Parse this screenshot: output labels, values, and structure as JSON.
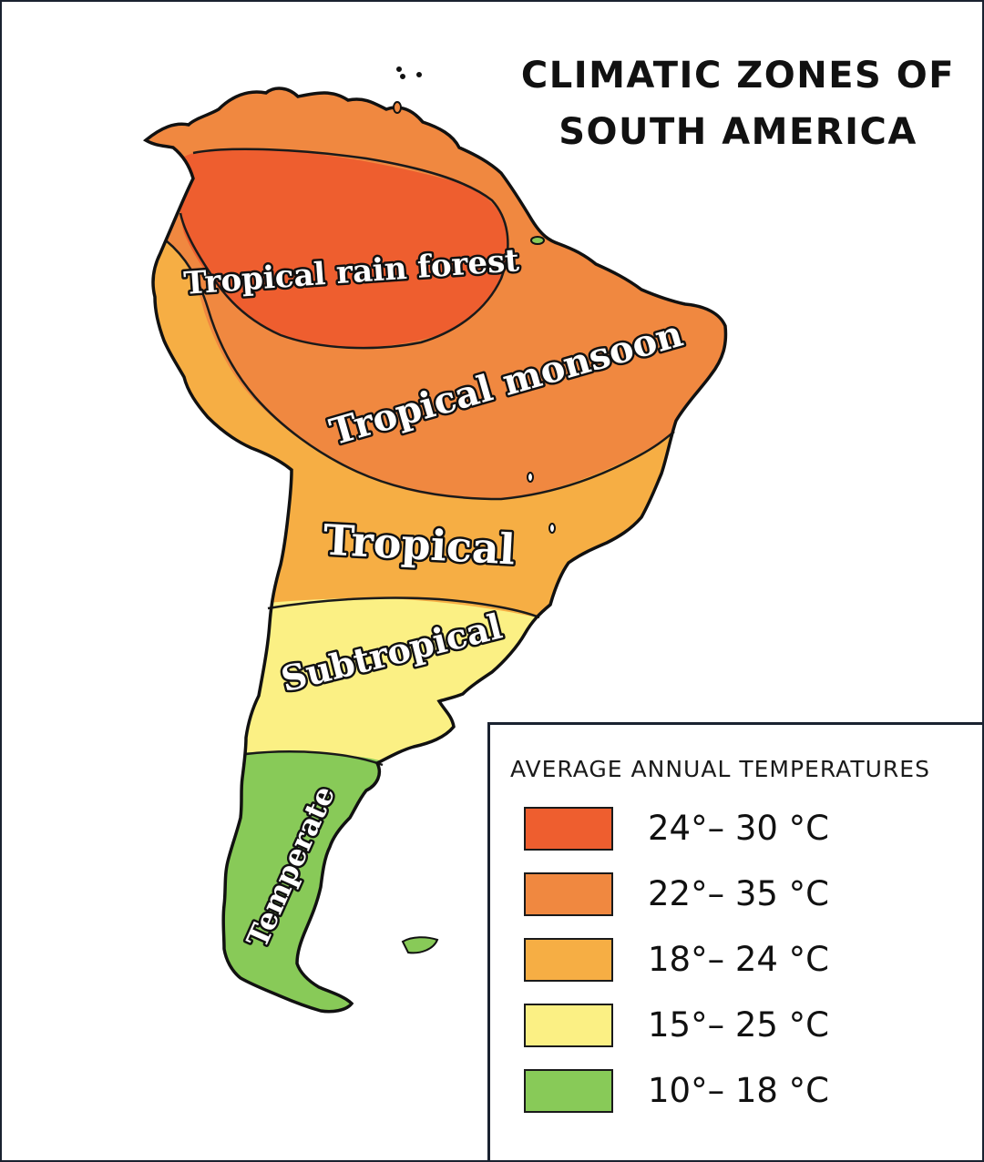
{
  "title": {
    "line1": "CLIMATIC ZONES OF",
    "line2": "SOUTH AMERICA"
  },
  "zones": [
    {
      "id": "tropical-rain-forest",
      "label": "Tropical rain forest",
      "color": "#EE5E2F"
    },
    {
      "id": "tropical-monsoon",
      "label": "Tropical monsoon",
      "color": "#F08840"
    },
    {
      "id": "tropical",
      "label": "Tropical",
      "color": "#F6AE44"
    },
    {
      "id": "subtropical",
      "label": "Subtropical",
      "color": "#FBF084"
    },
    {
      "id": "temperate",
      "label": "Temperate",
      "color": "#88CA58"
    }
  ],
  "legend": {
    "title": "AVERAGE ANNUAL TEMPERATURES",
    "items": [
      {
        "range": "24°– 30 °C",
        "color": "#EE5E2F"
      },
      {
        "range": "22°– 35 °C",
        "color": "#F08840"
      },
      {
        "range": "18°– 24 °C",
        "color": "#F6AE44"
      },
      {
        "range": "15°– 25 °C",
        "color": "#FBF084"
      },
      {
        "range": "10°– 18 °C",
        "color": "#88CA58"
      }
    ]
  }
}
